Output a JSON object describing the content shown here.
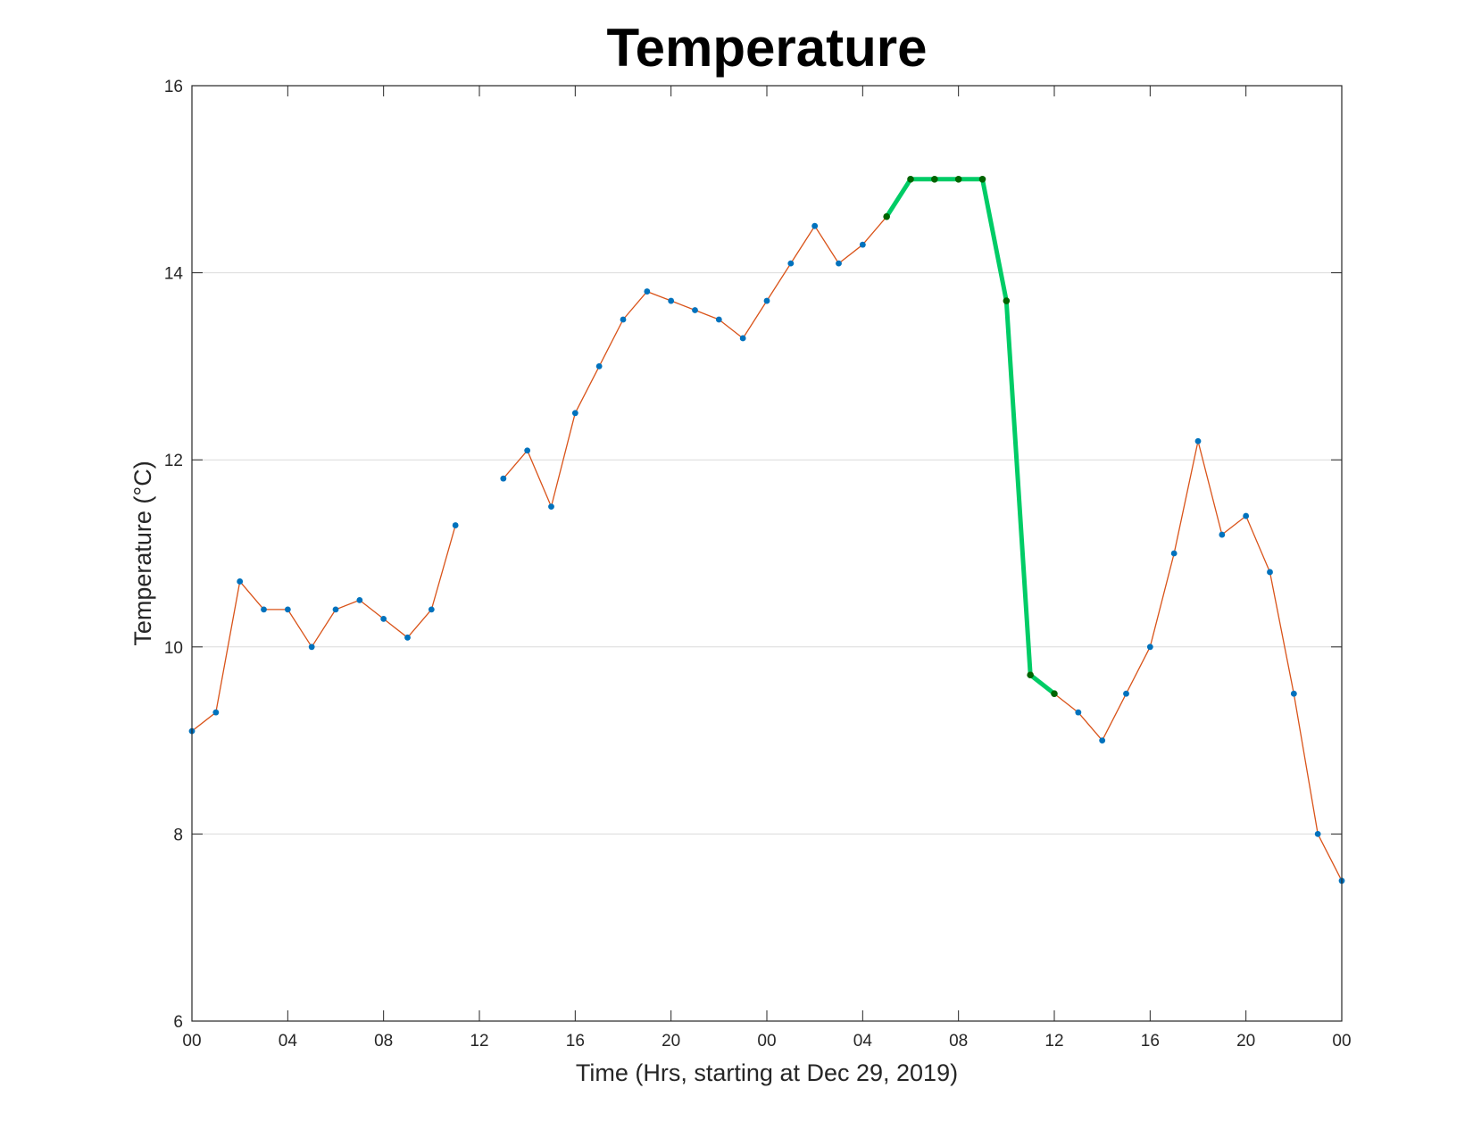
{
  "chart_data": {
    "type": "line",
    "title": "Temperature",
    "xlabel": "Time (Hrs, starting at Dec 29, 2019)",
    "ylabel": "Temperature (°C)",
    "xlim": [
      0,
      48
    ],
    "ylim": [
      6,
      16
    ],
    "x_ticks": [
      0,
      4,
      8,
      12,
      16,
      20,
      24,
      28,
      32,
      36,
      40,
      44,
      48
    ],
    "x_tick_labels": [
      "00",
      "04",
      "08",
      "12",
      "16",
      "20",
      "00",
      "04",
      "08",
      "12",
      "16",
      "20",
      "00"
    ],
    "y_ticks": [
      6,
      8,
      10,
      12,
      14,
      16
    ],
    "y_tick_labels": [
      "6",
      "8",
      "10",
      "12",
      "14",
      "16"
    ],
    "grid": "horizontal",
    "series": [
      {
        "x": [
          0,
          1,
          2,
          3,
          4,
          5,
          6,
          7,
          8,
          9,
          10,
          11,
          12,
          13,
          14,
          15,
          16,
          17,
          18,
          19,
          20,
          21,
          22,
          23,
          24,
          25,
          26,
          27,
          28,
          29,
          30,
          31,
          32,
          33,
          34,
          35,
          36,
          37,
          38,
          39,
          40,
          41,
          42,
          43,
          44,
          45,
          46,
          47,
          48
        ],
        "y": [
          9.1,
          9.3,
          10.7,
          10.4,
          10.4,
          10.0,
          10.4,
          10.5,
          10.3,
          10.1,
          10.4,
          11.3,
          null,
          11.8,
          12.1,
          11.5,
          12.5,
          13.0,
          13.5,
          13.8,
          13.7,
          13.6,
          13.5,
          13.3,
          13.7,
          14.1,
          14.5,
          14.1,
          14.3,
          14.6,
          15.0,
          15.0,
          15.0,
          15.0,
          13.7,
          9.7,
          9.5,
          9.3,
          9.0,
          9.5,
          10.0,
          11.0,
          12.2,
          11.2,
          11.4,
          10.8,
          9.5,
          8.0,
          7.5
        ],
        "line_color": "#d95319",
        "marker_color": "#0072bd"
      },
      {
        "x": [
          29,
          30,
          31,
          32,
          33,
          34,
          35,
          36
        ],
        "y": [
          14.6,
          15.0,
          15.0,
          15.0,
          15.0,
          13.7,
          9.7,
          9.5
        ],
        "line_color": "#00cc66",
        "marker_color": "#006400",
        "highlight": true
      }
    ]
  }
}
